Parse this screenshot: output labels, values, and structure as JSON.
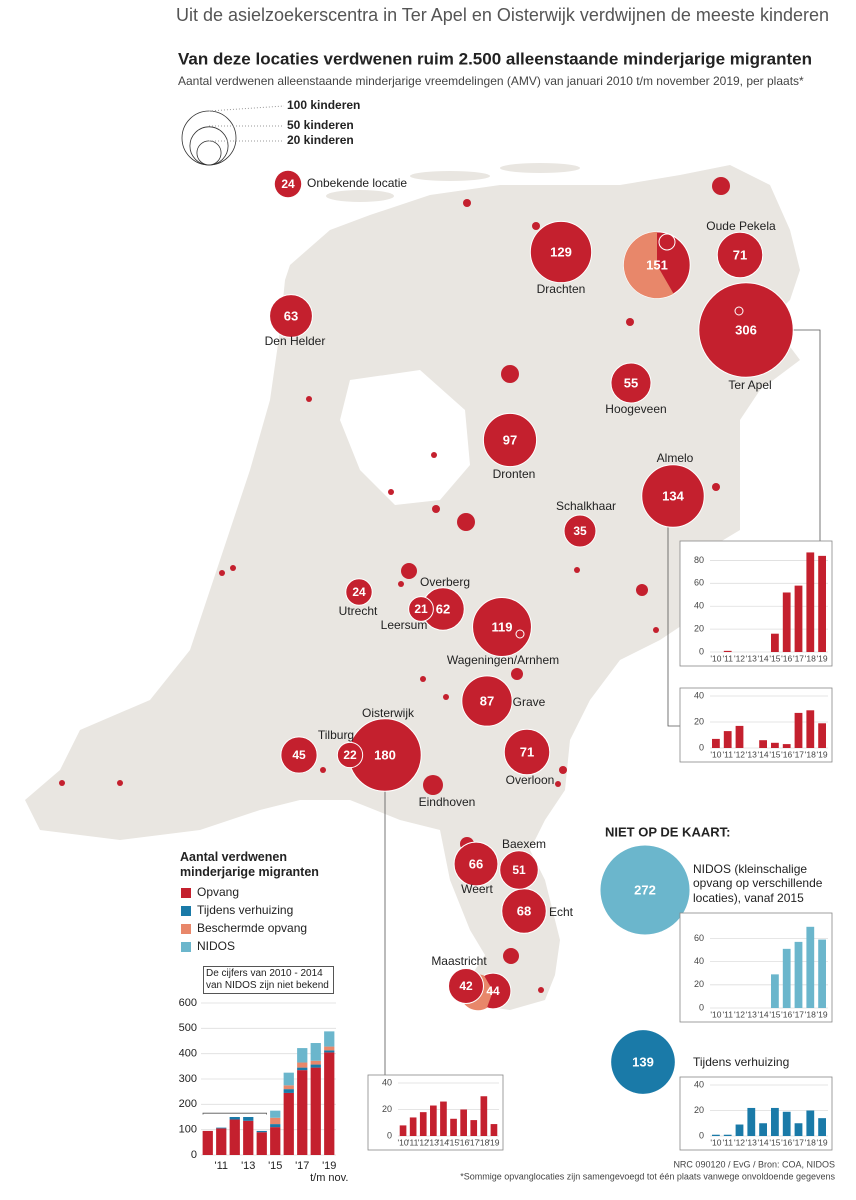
{
  "header": {
    "kicker": "Uit de asielzoekerscentra in Ter Apel en Oisterwijk verdwijnen de meeste kinderen",
    "title": "Van deze locaties verdwenen ruim 2.500 alleenstaande minderjarige migranten",
    "subtitle": "Aantal verdwenen alleenstaande minderjarige vreemdelingen (AMV) van januari 2010 t/m november 2019, per plaats*"
  },
  "size_legend": [
    {
      "value": 100,
      "label": "100 kinderen"
    },
    {
      "value": 50,
      "label": "50 kinderen"
    },
    {
      "value": 20,
      "label": "20 kinderen"
    }
  ],
  "unknown_location": {
    "value": 24,
    "label": "Onbekende locatie"
  },
  "locations": [
    {
      "name": "Drachten",
      "value": 129
    },
    {
      "name": "Oude Pekela",
      "value": 71
    },
    {
      "name": null,
      "value": 151
    },
    {
      "name": "Ter Apel",
      "value": 306
    },
    {
      "name": "Den Helder",
      "value": 63
    },
    {
      "name": "Hoogeveen",
      "value": 55
    },
    {
      "name": "Dronten",
      "value": 97
    },
    {
      "name": "Almelo",
      "value": 134
    },
    {
      "name": "Schalkhaar",
      "value": 35
    },
    {
      "name": "Utrecht",
      "value": 24
    },
    {
      "name": "Leersum",
      "value": 21
    },
    {
      "name": "Overberg",
      "value": 62
    },
    {
      "name": "Wageningen/Arnhem",
      "value": 119
    },
    {
      "name": "Grave",
      "value": 87
    },
    {
      "name": "Oisterwijk",
      "value": 180
    },
    {
      "name": "Tilburg",
      "value": 22
    },
    {
      "name": null,
      "value": 45
    },
    {
      "name": "Overloon",
      "value": 71
    },
    {
      "name": "Eindhoven",
      "value": null
    },
    {
      "name": "Weert",
      "value": 66
    },
    {
      "name": "Baexem",
      "value": 51
    },
    {
      "name": "Echt",
      "value": 68
    },
    {
      "name": "Maastricht",
      "value": 42
    },
    {
      "name": null,
      "value": 44
    }
  ],
  "not_on_map": {
    "title": "NIET OP DE KAART:",
    "items": [
      {
        "value": 272,
        "label": "NIDOS (kleinschalige opvang op verschillende locaties), vanaf 2015",
        "color": "#6bb6cc"
      },
      {
        "value": 139,
        "label": "Tijdens verhuizing",
        "color": "#1a7aa8"
      }
    ]
  },
  "chart_data": [
    {
      "type": "stacked_bar",
      "title": "Aantal verdwenen minderjarige migranten",
      "annotation": "De cijfers van 2010 - 2014 van NIDOS zijn niet bekend",
      "categories": [
        null,
        "'11",
        null,
        "'13",
        null,
        "'15",
        null,
        "'17",
        null,
        "'19"
      ],
      "x_note": "t/m nov.",
      "series": [
        {
          "name": "Opvang",
          "color": "#c4202e",
          "values": [
            95,
            105,
            140,
            135,
            90,
            110,
            245,
            335,
            345,
            405
          ]
        },
        {
          "name": "Tijdens verhuizing",
          "color": "#1a7aa8",
          "values": [
            0,
            3,
            10,
            15,
            5,
            12,
            15,
            10,
            12,
            8
          ]
        },
        {
          "name": "Beschermde opvang",
          "color": "#e8876a",
          "values": [
            0,
            0,
            0,
            0,
            0,
            25,
            15,
            20,
            15,
            15
          ]
        },
        {
          "name": "NIDOS",
          "color": "#6bb6cc",
          "values": [
            null,
            null,
            null,
            null,
            null,
            28,
            50,
            57,
            70,
            60
          ]
        }
      ],
      "ylim": [
        0,
        600
      ],
      "yticks": [
        0,
        100,
        200,
        300,
        400,
        500,
        600
      ]
    },
    {
      "type": "bar",
      "categories": [
        "'10",
        "'11",
        "'12",
        "'13",
        "'14",
        "'15",
        "'16",
        "'17",
        "'18",
        "'19"
      ],
      "values": [
        0,
        1,
        0,
        0,
        0,
        16,
        52,
        58,
        87,
        84
      ],
      "color": "#c4202e",
      "ylim": [
        0,
        90
      ],
      "yticks": [
        0,
        20,
        40,
        60,
        80
      ]
    },
    {
      "type": "bar",
      "categories": [
        "'10",
        "'11",
        "'12",
        "'13",
        "'14",
        "'15",
        "'16",
        "'17",
        "'18",
        "'19"
      ],
      "values": [
        7,
        13,
        17,
        0,
        6,
        4,
        3,
        27,
        29,
        19
      ],
      "color": "#c4202e",
      "ylim": [
        0,
        40
      ],
      "yticks": [
        0,
        20,
        40
      ]
    },
    {
      "type": "bar",
      "categories": [
        "'10",
        "'11",
        "'12",
        "'13",
        "'14",
        "'15",
        "'16",
        "'17",
        "'18",
        "'19"
      ],
      "values": [
        8,
        14,
        18,
        23,
        26,
        13,
        20,
        12,
        30,
        9
      ],
      "color": "#c4202e",
      "ylim": [
        0,
        40
      ],
      "yticks": [
        0,
        20,
        40
      ]
    },
    {
      "type": "bar",
      "categories": [
        "'10",
        "'11",
        "'12",
        "'13",
        "'14",
        "'15",
        "'16",
        "'17",
        "'18",
        "'19"
      ],
      "values": [
        0,
        0,
        0,
        0,
        0,
        29,
        51,
        57,
        70,
        59
      ],
      "color": "#6bb6cc",
      "ylim": [
        0,
        75
      ],
      "yticks": [
        0,
        20,
        40,
        60
      ]
    },
    {
      "type": "bar",
      "categories": [
        "'10",
        "'11",
        "'12",
        "'13",
        "'14",
        "'15",
        "'16",
        "'17",
        "'18",
        "'19"
      ],
      "values": [
        1,
        1,
        9,
        22,
        10,
        22,
        19,
        10,
        20,
        14
      ],
      "color": "#1a7aa8",
      "ylim": [
        0,
        40
      ],
      "yticks": [
        0,
        20,
        40
      ]
    }
  ],
  "footer": {
    "credit": "NRC 090120 / EvG / Bron: COA, NIDOS",
    "note": "*Sommige opvanglocaties zijn samengevoegd tot één plaats vanwege onvoldoende gegevens"
  }
}
